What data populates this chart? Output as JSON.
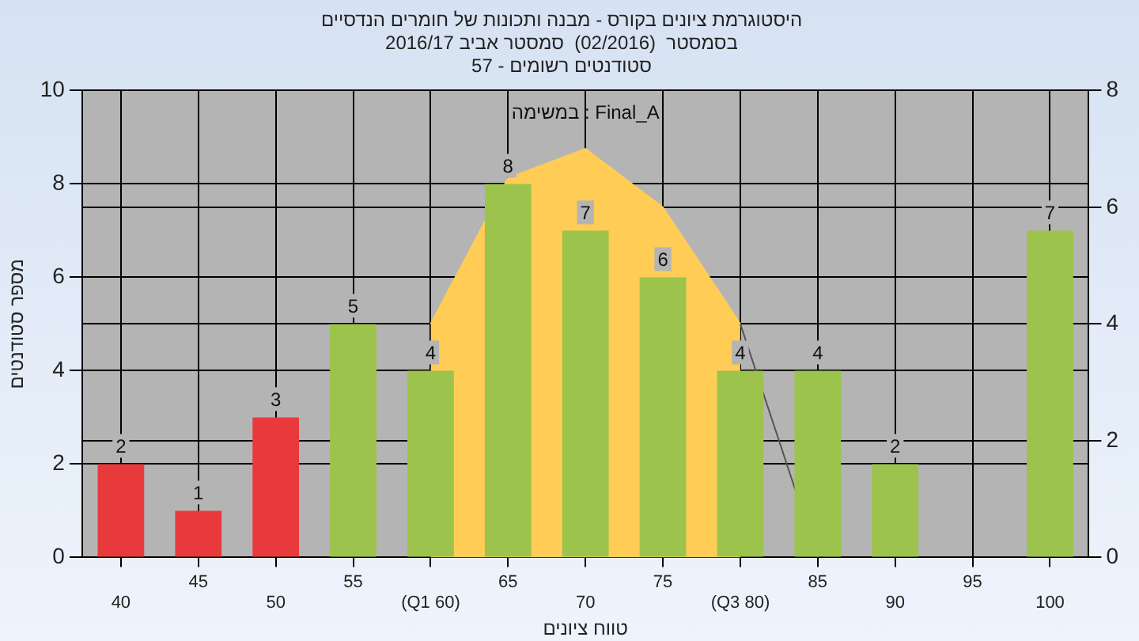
{
  "chart_data": {
    "type": "bar",
    "title": "היסטוגרמת ציונים בקורס - מבנה ותכונות של חומרים הנדסיים",
    "subtitle": "בסמסטר  (02/2016)  סמסטר אביב 2016/17\nסטודנטים רשומים - 57",
    "xlabel": "טווח ציונים",
    "ylabel": "מספר סטודנטים",
    "annotations": [
      "במשימה : Final_A"
    ],
    "categories": [
      "40",
      "45",
      "50",
      "55",
      "(Q1 60)",
      "65",
      "70",
      "75",
      "(Q3 80)",
      "85",
      "90",
      "95",
      "100"
    ],
    "series": [
      {
        "type": "area",
        "axis": "y2",
        "color": "#ffcc55",
        "values": [
          null,
          null,
          null,
          null,
          4,
          6.5,
          7,
          6,
          4,
          null,
          null,
          null,
          null
        ]
      },
      {
        "type": "line",
        "axis": "y2",
        "color": "#555555",
        "values": [
          null,
          null,
          null,
          null,
          null,
          null,
          null,
          null,
          4,
          0,
          null,
          null,
          null
        ]
      },
      {
        "colors": [
          "#e83a3c",
          "#e83a3c",
          "#e83a3c",
          "#9cc44c",
          "#9cc44c",
          "#9cc44c",
          "#9cc44c",
          "#9cc44c",
          "#9cc44c",
          "#9cc44c",
          "#9cc44c",
          "#9cc44c",
          "#9cc44c"
        ],
        "values": [
          2,
          1,
          3,
          5,
          4,
          8,
          7,
          6,
          4,
          4,
          2,
          null,
          7
        ],
        "value_labels": [
          "2",
          "1",
          "3",
          "5",
          "4",
          "8",
          "7",
          "6",
          "4",
          "4",
          "2",
          null,
          "7"
        ]
      }
    ],
    "ylim": [
      0,
      10
    ],
    "yticks": [
      0,
      2,
      4,
      6,
      8,
      10
    ],
    "y2lim": [
      0,
      8
    ],
    "y2ticks": [
      0,
      2,
      4,
      6,
      8
    ],
    "grid": true,
    "legend": false
  }
}
